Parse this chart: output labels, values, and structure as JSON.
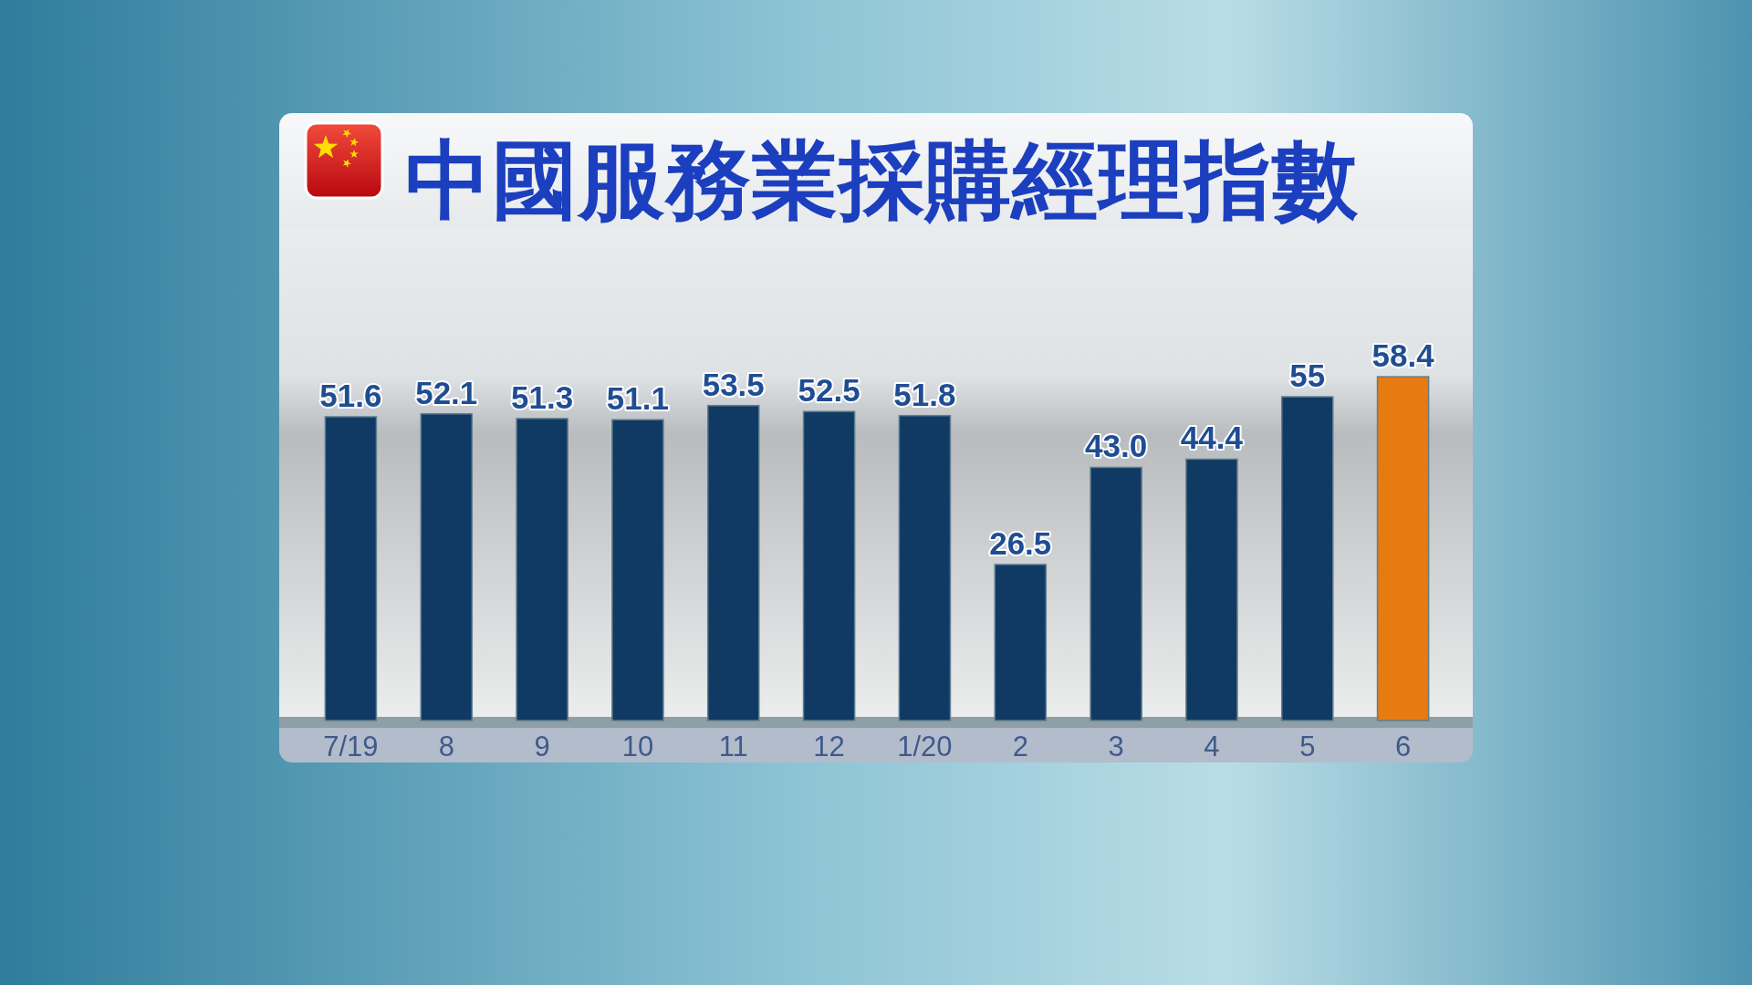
{
  "chart_data": {
    "type": "bar",
    "title": "中國服務業採購經理指數",
    "categories": [
      "7/19",
      "8",
      "9",
      "10",
      "11",
      "12",
      "1/20",
      "2",
      "3",
      "4",
      "5",
      "6"
    ],
    "values": [
      51.6,
      52.1,
      51.3,
      51.1,
      53.5,
      52.5,
      51.8,
      26.5,
      43.0,
      44.4,
      55,
      58.4
    ],
    "colors": [
      "#103a63",
      "#103a63",
      "#103a63",
      "#103a63",
      "#103a63",
      "#103a63",
      "#103a63",
      "#103a63",
      "#103a63",
      "#103a63",
      "#103a63",
      "#e87a12"
    ],
    "value_labels": [
      "51.6",
      "52.1",
      "51.3",
      "51.1",
      "53.5",
      "52.5",
      "51.8",
      "26.5",
      "43.0",
      "44.4",
      "55",
      "58.4"
    ]
  }
}
